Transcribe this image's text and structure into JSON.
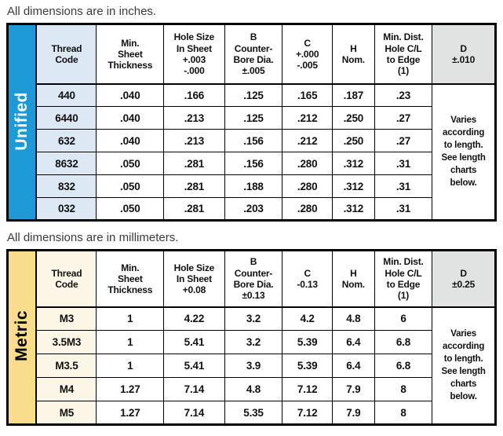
{
  "colors": {
    "unified_accent": "#1B9AD5",
    "unified_tint": "#DCE8F3",
    "metric_accent": "#F9DC8C",
    "metric_tint": "#FCF6E6",
    "d_header_gray": "#E1E3E2"
  },
  "inches_table": {
    "caption": "All dimensions are in inches.",
    "side_label": "Unified",
    "headers": [
      "Thread\nCode",
      "Min.\nSheet\nThickness",
      "Hole Size\nIn Sheet\n+.003\n-.000",
      "B\nCounter-\nBore Dia.\n±.005",
      "C\n+.000\n-.005",
      "H\nNom.",
      "Min. Dist.\nHole C/L\nto Edge\n(1)",
      "D\n±.010"
    ],
    "rows": [
      [
        "440",
        ".040",
        ".166",
        ".125",
        ".165",
        ".187",
        ".23"
      ],
      [
        "6440",
        ".040",
        ".213",
        ".125",
        ".212",
        ".250",
        ".27"
      ],
      [
        "632",
        ".040",
        ".213",
        ".156",
        ".212",
        ".250",
        ".27"
      ],
      [
        "8632",
        ".050",
        ".281",
        ".156",
        ".280",
        ".312",
        ".31"
      ],
      [
        "832",
        ".050",
        ".281",
        ".188",
        ".280",
        ".312",
        ".31"
      ],
      [
        "032",
        ".050",
        ".281",
        ".203",
        ".280",
        ".312",
        ".31"
      ]
    ],
    "d_note": "Varies\naccording\nto length.\nSee length\ncharts\nbelow."
  },
  "mm_table": {
    "caption": "All dimensions are in millimeters.",
    "side_label": "Metric",
    "headers": [
      "Thread\nCode",
      "Min.\nSheet\nThickness",
      "Hole Size\nIn Sheet\n+0.08",
      "B\nCounter-\nBore Dia.\n±0.13",
      "C\n-0.13",
      "H\nNom.",
      "Min. Dist.\nHole C/L\nto Edge\n(1)",
      "D\n±0.25"
    ],
    "rows": [
      [
        "M3",
        "1",
        "4.22",
        "3.2",
        "4.2",
        "4.8",
        "6"
      ],
      [
        "3.5M3",
        "1",
        "5.41",
        "3.2",
        "5.39",
        "6.4",
        "6.8"
      ],
      [
        "M3.5",
        "1",
        "5.41",
        "3.9",
        "5.39",
        "6.4",
        "6.8"
      ],
      [
        "M4",
        "1.27",
        "7.14",
        "4.8",
        "7.12",
        "7.9",
        "8"
      ],
      [
        "M5",
        "1.27",
        "7.14",
        "5.35",
        "7.12",
        "7.9",
        "8"
      ]
    ],
    "d_note": "Varies\naccording\nto length.\nSee length\ncharts\nbelow."
  }
}
